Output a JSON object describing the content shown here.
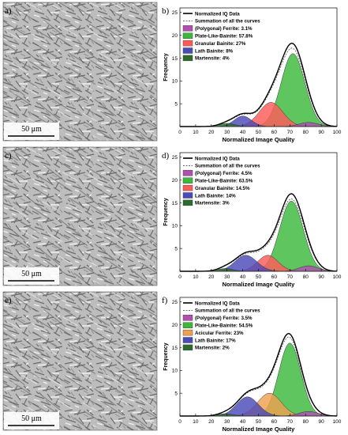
{
  "panels": [
    {
      "letter": "a)",
      "scale_label": "50 μm"
    },
    {
      "letter": "c)",
      "scale_label": "50 μm"
    },
    {
      "letter": "e)",
      "scale_label": "50 μm"
    }
  ],
  "chart_data": [
    {
      "panel_letter": "b)",
      "type": "area",
      "xlabel": "Normalized Image Quality",
      "ylabel": "Frequency",
      "xlim": [
        0,
        100
      ],
      "ylim": [
        0,
        26
      ],
      "xticks": [
        0,
        10,
        20,
        30,
        40,
        50,
        60,
        70,
        80,
        90,
        100
      ],
      "yticks": [
        5,
        10,
        15,
        20,
        25
      ],
      "legend": [
        "Normalized IQ Data",
        "Summation of all the curves",
        "(Polygonal) Ferrite: 3.1%",
        "Plate-Like-Bainite: 57.8%",
        "Granular Bainite: 27%",
        "Lath Bainite: 8%",
        "Martensite: 4%"
      ],
      "components": [
        {
          "name": "(Polygonal) Ferrite: 3.1%",
          "color": "#b04fb0",
          "center": 82,
          "sd": 6,
          "peak": 0.9
        },
        {
          "name": "Plate-Like-Bainite: 57.8%",
          "color": "#3cb83c",
          "center": 72,
          "sd": 7.5,
          "peak": 16
        },
        {
          "name": "Granular Bainite: 27%",
          "color": "#ff5a5a",
          "center": 58,
          "sd": 7.5,
          "peak": 5.3
        },
        {
          "name": "Lath Bainite: 8%",
          "color": "#4a4ab8",
          "center": 40,
          "sd": 5.5,
          "peak": 2.3
        },
        {
          "name": "Martensite: 4%",
          "color": "#2d6a2d",
          "center": 30,
          "sd": 5,
          "peak": 0.7
        }
      ],
      "normalized_iq": {
        "name": "Normalized IQ Data",
        "peak_x": 72,
        "peak_y": 18.2
      }
    },
    {
      "panel_letter": "d)",
      "type": "area",
      "xlabel": "Normalized Image Quality",
      "ylabel": "Frequency",
      "xlim": [
        0,
        100
      ],
      "ylim": [
        0,
        26
      ],
      "xticks": [
        0,
        10,
        20,
        30,
        40,
        50,
        60,
        70,
        80,
        90,
        100
      ],
      "yticks": [
        5,
        10,
        15,
        20,
        25
      ],
      "legend": [
        "Normalized IQ Data",
        "Summation of all the curves",
        "(Polygonal) Ferrite: 4.5%",
        "Plate-Like-Bainite: 63.5%",
        "Granular Bainite: 14.5%",
        "Lath Bainite: 14%",
        "Martensite: 3%"
      ],
      "components": [
        {
          "name": "(Polygonal) Ferrite: 4.5%",
          "color": "#b04fb0",
          "center": 82,
          "sd": 6,
          "peak": 1.2
        },
        {
          "name": "Plate-Like-Bainite: 63.5%",
          "color": "#3cb83c",
          "center": 71,
          "sd": 7.5,
          "peak": 15.4
        },
        {
          "name": "Granular Bainite: 14.5%",
          "color": "#ff5a5a",
          "center": 56,
          "sd": 6.5,
          "peak": 3.5
        },
        {
          "name": "Lath Bainite: 14%",
          "color": "#4a4ab8",
          "center": 42,
          "sd": 7,
          "peak": 3.5
        },
        {
          "name": "Martensite: 3%",
          "color": "#2d6a2d",
          "center": 29,
          "sd": 5,
          "peak": 0.6
        }
      ],
      "normalized_iq": {
        "name": "Normalized IQ Data",
        "peak_x": 71,
        "peak_y": 17.0
      }
    },
    {
      "panel_letter": "f)",
      "type": "area",
      "xlabel": "Normalized Image Quality",
      "ylabel": "Frequency",
      "xlim": [
        0,
        100
      ],
      "ylim": [
        0,
        26
      ],
      "xticks": [
        0,
        10,
        20,
        30,
        40,
        50,
        60,
        70,
        80,
        90,
        100
      ],
      "yticks": [
        5,
        10,
        15,
        20,
        25
      ],
      "legend": [
        "Normalized IQ Data",
        "Summation of all the curves",
        "(Polygonal) Ferrite: 3.5%",
        "Plate-Like-Bainite: 54.5%",
        "Acicular Ferrite: 23%",
        "Lath Bainite: 17%",
        "Martensite: 2%"
      ],
      "components": [
        {
          "name": "(Polygonal) Ferrite: 3.5%",
          "color": "#b04fb0",
          "center": 82,
          "sd": 6,
          "peak": 1.0
        },
        {
          "name": "Plate-Like-Bainite: 54.5%",
          "color": "#3cb83c",
          "center": 70,
          "sd": 7,
          "peak": 16
        },
        {
          "name": "Acicular Ferrite: 23%",
          "color": "#f0a050",
          "center": 57,
          "sd": 7.5,
          "peak": 5.0
        },
        {
          "name": "Lath Bainite: 17%",
          "color": "#4a4ab8",
          "center": 43,
          "sd": 7,
          "peak": 4.2
        },
        {
          "name": "Martensite: 2%",
          "color": "#2d6a2d",
          "center": 29,
          "sd": 5,
          "peak": 0.5
        }
      ],
      "normalized_iq": {
        "name": "Normalized IQ Data",
        "peak_x": 70,
        "peak_y": 18.0
      }
    }
  ]
}
